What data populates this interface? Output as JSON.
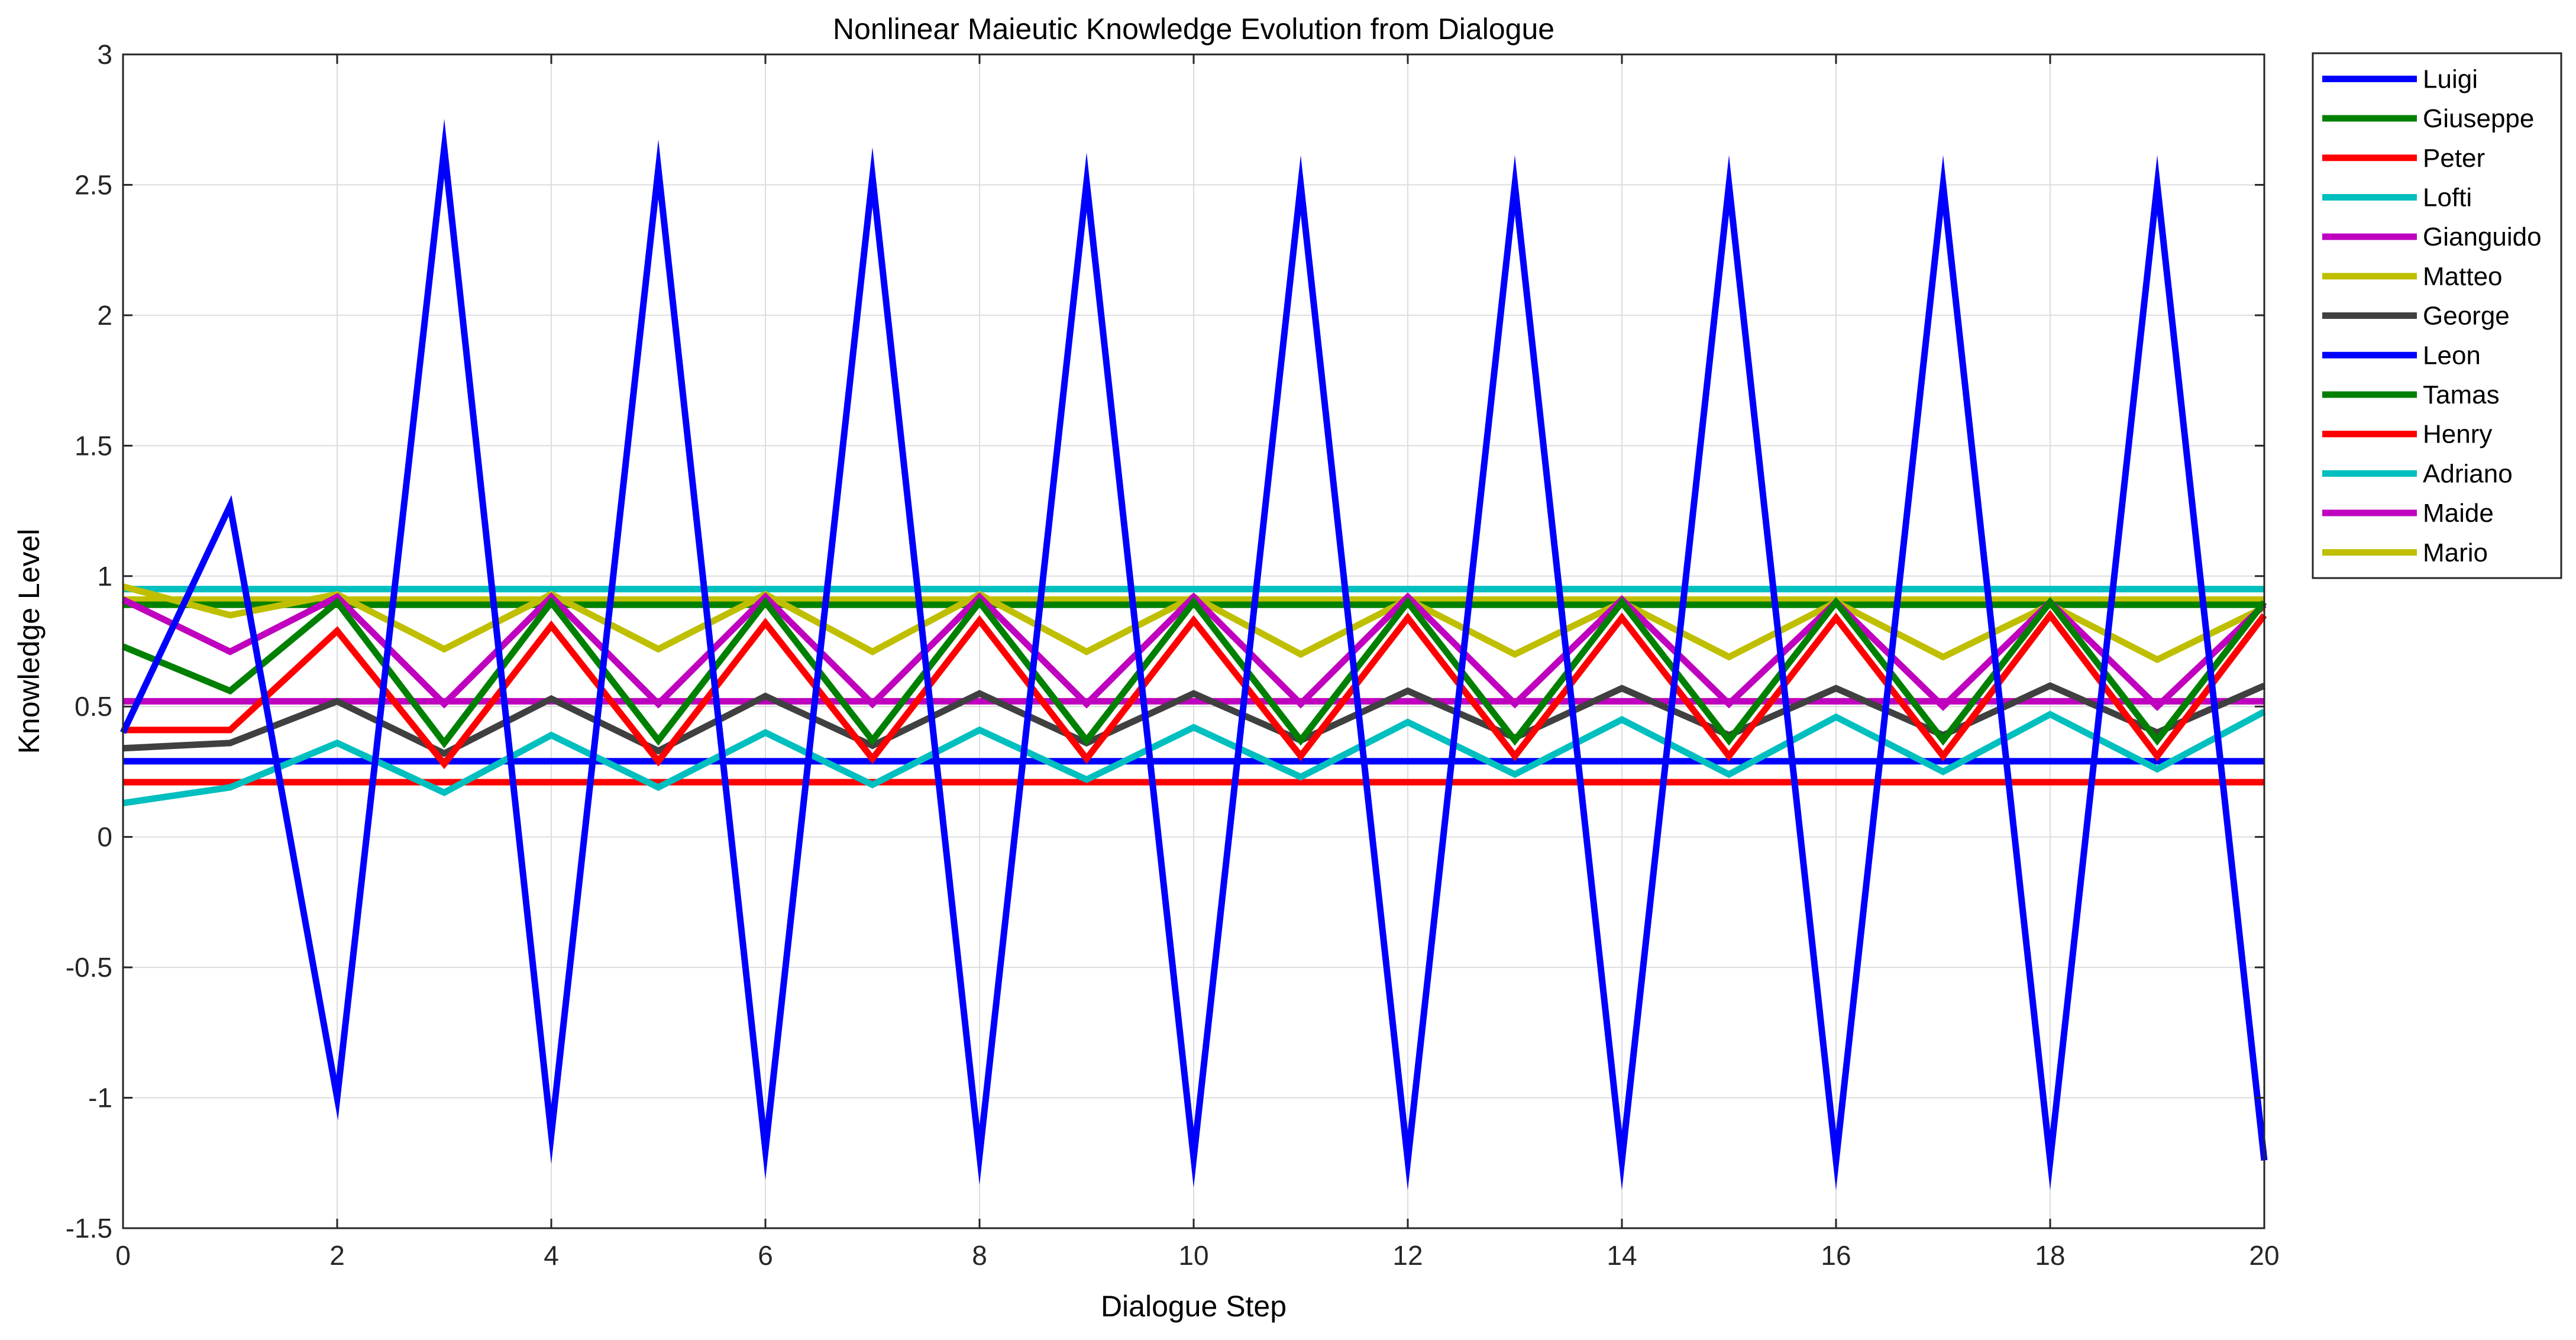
{
  "chart_data": {
    "type": "line",
    "title": "Nonlinear Maieutic Knowledge Evolution from Dialogue",
    "xlabel": "Dialogue Step",
    "ylabel": "Knowledge Level",
    "xlim": [
      0,
      20
    ],
    "ylim": [
      -1.5,
      3
    ],
    "xticks": [
      0,
      2,
      4,
      6,
      8,
      10,
      12,
      14,
      16,
      18,
      20
    ],
    "xtick_labels": [
      "0",
      "2",
      "4",
      "6",
      "8",
      "10",
      "12",
      "14",
      "16",
      "18",
      "20"
    ],
    "yticks": [
      -1.5,
      -1,
      -0.5,
      0,
      0.5,
      1,
      1.5,
      2,
      2.5,
      3
    ],
    "ytick_labels": [
      "-1.5",
      "-1",
      "-0.5",
      "0",
      "0.5",
      "1",
      "1.5",
      "2",
      "2.5",
      "3"
    ],
    "grid": true,
    "legend_position": "outside-top-right",
    "x": [
      0,
      1,
      2,
      3,
      4,
      5,
      6,
      7,
      8,
      9,
      10,
      11,
      12,
      13,
      14,
      15,
      16,
      17,
      18,
      19,
      20
    ],
    "series": [
      {
        "name": "Luigi",
        "color": "#0000ff",
        "values": [
          0.4,
          1.27,
          -1.0,
          2.64,
          -1.14,
          2.56,
          -1.2,
          2.53,
          -1.22,
          2.51,
          -1.23,
          2.5,
          -1.24,
          2.5,
          -1.24,
          2.5,
          -1.24,
          2.5,
          -1.24,
          2.5,
          -1.24
        ]
      },
      {
        "name": "Giuseppe",
        "color": "#008000",
        "values": [
          0.73,
          0.56,
          0.9,
          0.36,
          0.9,
          0.37,
          0.9,
          0.37,
          0.9,
          0.37,
          0.9,
          0.37,
          0.9,
          0.37,
          0.9,
          0.37,
          0.9,
          0.37,
          0.9,
          0.37,
          0.9
        ]
      },
      {
        "name": "Peter",
        "color": "#ff0000",
        "values": [
          0.41,
          0.41,
          0.79,
          0.28,
          0.81,
          0.29,
          0.82,
          0.3,
          0.83,
          0.3,
          0.83,
          0.31,
          0.84,
          0.31,
          0.84,
          0.31,
          0.84,
          0.31,
          0.85,
          0.31,
          0.85
        ]
      },
      {
        "name": "Lofti",
        "color": "#00bfbf",
        "values": [
          0.13,
          0.19,
          0.36,
          0.17,
          0.39,
          0.19,
          0.4,
          0.2,
          0.41,
          0.22,
          0.42,
          0.23,
          0.44,
          0.24,
          0.45,
          0.24,
          0.46,
          0.25,
          0.47,
          0.26,
          0.48
        ]
      },
      {
        "name": "Gianguido",
        "color": "#bf00bf",
        "values": [
          0.91,
          0.71,
          0.92,
          0.51,
          0.92,
          0.51,
          0.92,
          0.51,
          0.92,
          0.51,
          0.92,
          0.51,
          0.92,
          0.51,
          0.91,
          0.51,
          0.9,
          0.5,
          0.9,
          0.5,
          0.89
        ]
      },
      {
        "name": "Matteo",
        "color": "#bfbf00",
        "values": [
          0.96,
          0.85,
          0.93,
          0.72,
          0.93,
          0.72,
          0.93,
          0.71,
          0.93,
          0.71,
          0.92,
          0.7,
          0.91,
          0.7,
          0.9,
          0.69,
          0.9,
          0.69,
          0.89,
          0.68,
          0.88
        ]
      },
      {
        "name": "George",
        "color": "#404040",
        "values": [
          0.34,
          0.36,
          0.52,
          0.32,
          0.53,
          0.33,
          0.54,
          0.35,
          0.55,
          0.36,
          0.55,
          0.37,
          0.56,
          0.38,
          0.57,
          0.39,
          0.57,
          0.39,
          0.58,
          0.4,
          0.58
        ]
      },
      {
        "name": "Leon",
        "color": "#0000ff",
        "values": [
          0.29,
          0.29,
          0.29,
          0.29,
          0.29,
          0.29,
          0.29,
          0.29,
          0.29,
          0.29,
          0.29,
          0.29,
          0.29,
          0.29,
          0.29,
          0.29,
          0.29,
          0.29,
          0.29,
          0.29,
          0.29
        ]
      },
      {
        "name": "Tamas",
        "color": "#008000",
        "values": [
          0.89,
          0.89,
          0.89,
          0.89,
          0.89,
          0.89,
          0.89,
          0.89,
          0.89,
          0.89,
          0.89,
          0.89,
          0.89,
          0.89,
          0.89,
          0.89,
          0.89,
          0.89,
          0.89,
          0.89,
          0.89
        ]
      },
      {
        "name": "Henry",
        "color": "#ff0000",
        "values": [
          0.21,
          0.21,
          0.21,
          0.21,
          0.21,
          0.21,
          0.21,
          0.21,
          0.21,
          0.21,
          0.21,
          0.21,
          0.21,
          0.21,
          0.21,
          0.21,
          0.21,
          0.21,
          0.21,
          0.21,
          0.21
        ]
      },
      {
        "name": "Adriano",
        "color": "#00bfbf",
        "values": [
          0.95,
          0.95,
          0.95,
          0.95,
          0.95,
          0.95,
          0.95,
          0.95,
          0.95,
          0.95,
          0.95,
          0.95,
          0.95,
          0.95,
          0.95,
          0.95,
          0.95,
          0.95,
          0.95,
          0.95,
          0.95
        ]
      },
      {
        "name": "Maide",
        "color": "#bf00bf",
        "values": [
          0.52,
          0.52,
          0.52,
          0.52,
          0.52,
          0.52,
          0.52,
          0.52,
          0.52,
          0.52,
          0.52,
          0.52,
          0.52,
          0.52,
          0.52,
          0.52,
          0.52,
          0.52,
          0.52,
          0.52,
          0.52
        ]
      },
      {
        "name": "Mario",
        "color": "#bfbf00",
        "values": [
          0.91,
          0.91,
          0.91,
          0.91,
          0.91,
          0.91,
          0.91,
          0.91,
          0.91,
          0.91,
          0.91,
          0.91,
          0.91,
          0.91,
          0.91,
          0.91,
          0.91,
          0.91,
          0.91,
          0.91,
          0.91
        ]
      }
    ]
  }
}
